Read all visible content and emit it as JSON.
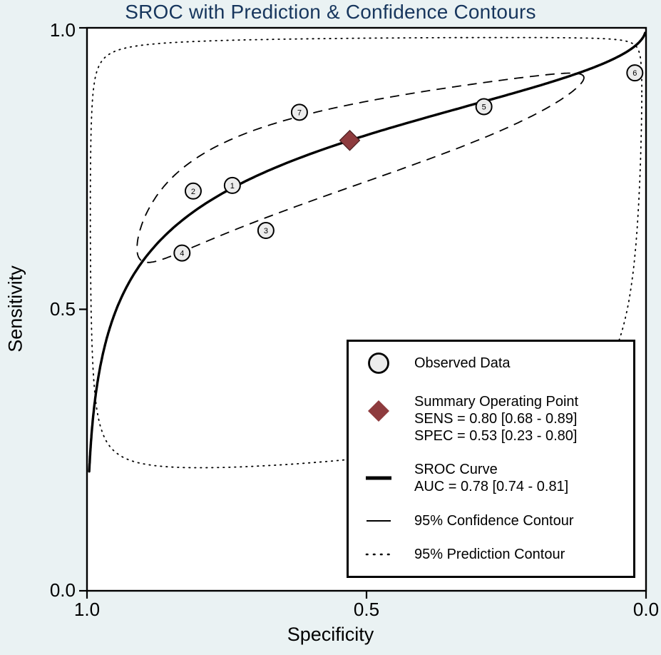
{
  "title": "SROC with Prediction & Confidence Contours",
  "axes": {
    "x_label": "Specificity",
    "y_label": "Sensitivity",
    "x_ticks": [
      "1.0",
      "0.5",
      "0.0"
    ],
    "y_ticks": [
      "1.0",
      "0.5",
      "0.0"
    ]
  },
  "chart_data": {
    "type": "scatter",
    "title": "SROC with Prediction & Confidence Contours",
    "xlabel": "Specificity",
    "ylabel": "Sensitivity",
    "x_axis": {
      "min": 0.0,
      "max": 1.0,
      "reversed": true,
      "ticks": [
        1.0,
        0.5,
        0.0
      ]
    },
    "y_axis": {
      "min": 0.0,
      "max": 1.0,
      "ticks": [
        1.0,
        0.5,
        0.0
      ]
    },
    "grid": false,
    "legend_position": "bottom-right",
    "studies": [
      {
        "id": "1",
        "specificity": 0.74,
        "sensitivity": 0.72
      },
      {
        "id": "2",
        "specificity": 0.81,
        "sensitivity": 0.71
      },
      {
        "id": "3",
        "specificity": 0.68,
        "sensitivity": 0.64
      },
      {
        "id": "4",
        "specificity": 0.83,
        "sensitivity": 0.6
      },
      {
        "id": "5",
        "specificity": 0.29,
        "sensitivity": 0.86
      },
      {
        "id": "6",
        "specificity": 0.02,
        "sensitivity": 0.92
      },
      {
        "id": "7",
        "specificity": 0.62,
        "sensitivity": 0.85
      }
    ],
    "summary_point": {
      "sensitivity": 0.8,
      "sens_ci": [
        0.68,
        0.89
      ],
      "specificity": 0.53,
      "spec_ci": [
        0.23,
        0.8
      ]
    },
    "sroc_curve": {
      "auc": 0.78,
      "auc_ci": [
        0.74,
        0.81
      ],
      "logit_intercept": 1.446,
      "logit_slope": 0.5,
      "fpr_range": [
        0.004,
        0.9985
      ]
    },
    "confidence_contour": {
      "center_logit_fpr": -0.12,
      "center_logit_sens": 1.386,
      "half_logit_fpr": 2.2,
      "half_logit_sens": 1.05,
      "rho": 0.9
    },
    "prediction_contour": {
      "center_logit_fpr": -0.12,
      "center_logit_sens": 1.386,
      "half_logit_fpr": 5.0,
      "half_logit_sens": 2.66,
      "rho": 0.25
    }
  },
  "legend": {
    "observed": {
      "label": "Observed Data"
    },
    "summary": {
      "line1": "Summary Operating Point",
      "line2": "SENS = 0.80 [0.68 - 0.89]",
      "line3": "SPEC = 0.53 [0.23 - 0.80]"
    },
    "sroc": {
      "line1": "SROC Curve",
      "line2": "AUC = 0.78 [0.74 - 0.81]"
    },
    "confidence": {
      "label": "95% Confidence Contour"
    },
    "prediction": {
      "label": "95% Prediction Contour"
    }
  },
  "colors": {
    "background": "#eaf2f3",
    "plot_background": "#ffffff",
    "title": "#17365d",
    "axis": "#000000",
    "summary_diamond": "#8e3b3e",
    "observed_fill": "#ececec"
  }
}
